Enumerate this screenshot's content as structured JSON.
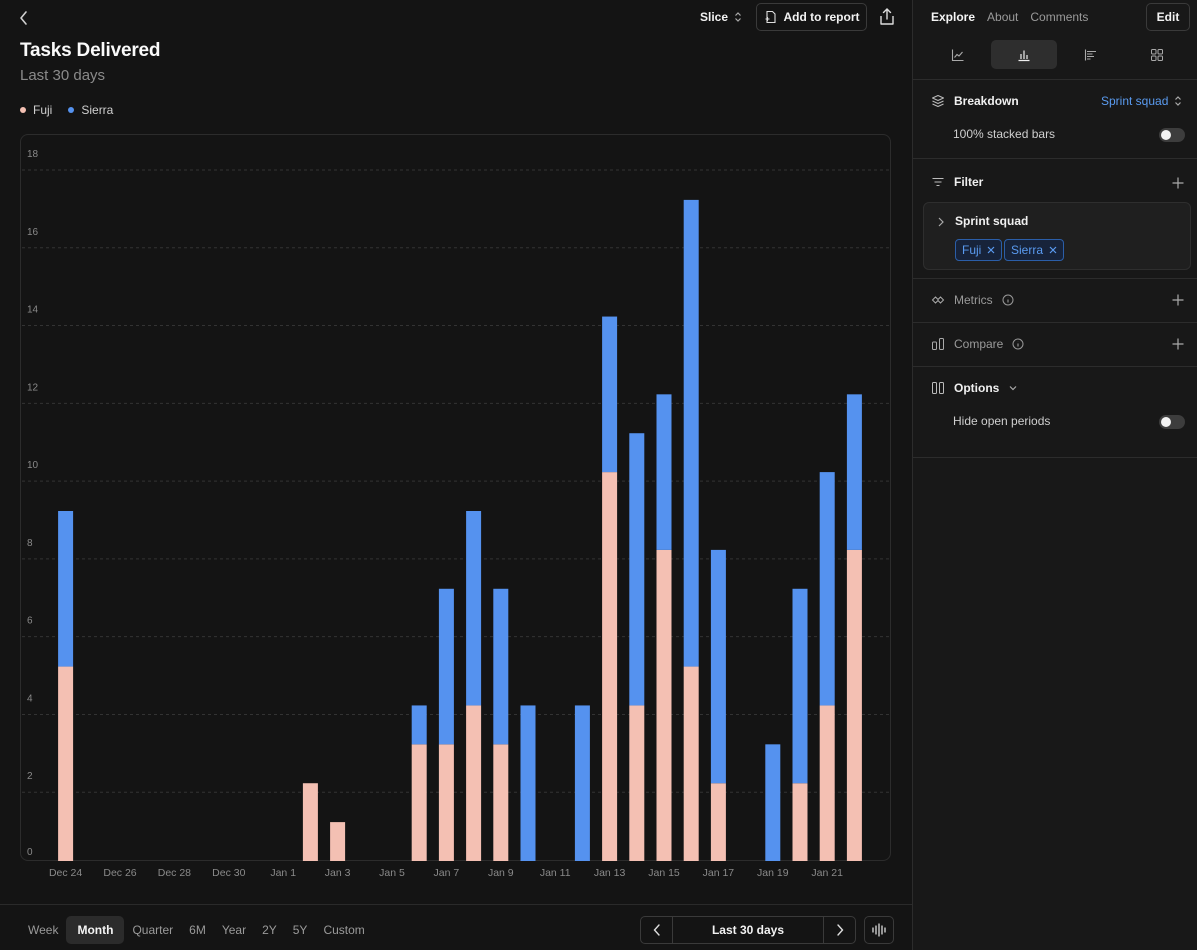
{
  "header": {
    "slice_label": "Slice",
    "add_to_report_label": "Add to report",
    "title": "Tasks Delivered",
    "subtitle": "Last 30 days"
  },
  "legend": [
    {
      "name": "Fuji",
      "color": "#f4c0b3"
    },
    {
      "name": "Sierra",
      "color": "#5592ef"
    }
  ],
  "chart_data": {
    "type": "bar",
    "stacked": true,
    "title": "Tasks Delivered",
    "subtitle": "Last 30 days",
    "ylim": [
      0,
      18
    ],
    "yticks": [
      0,
      2,
      4,
      6,
      8,
      10,
      12,
      14,
      16,
      18
    ],
    "xtick_labels": [
      "Dec 24",
      "Dec 26",
      "Dec 28",
      "Dec 30",
      "Jan 1",
      "Jan 3",
      "Jan 5",
      "Jan 7",
      "Jan 9",
      "Jan 11",
      "Jan 13",
      "Jan 15",
      "Jan 17",
      "Jan 19",
      "Jan 21"
    ],
    "categories": [
      "Dec 24",
      "Dec 25",
      "Dec 26",
      "Dec 27",
      "Dec 28",
      "Dec 29",
      "Dec 30",
      "Dec 31",
      "Jan 1",
      "Jan 2",
      "Jan 3",
      "Jan 4",
      "Jan 5",
      "Jan 6",
      "Jan 7",
      "Jan 8",
      "Jan 9",
      "Jan 10",
      "Jan 11",
      "Jan 12",
      "Jan 13",
      "Jan 14",
      "Jan 15",
      "Jan 16",
      "Jan 17",
      "Jan 18",
      "Jan 19",
      "Jan 20",
      "Jan 21",
      "Jan 22"
    ],
    "series": [
      {
        "name": "Fuji",
        "color": "#f4c0b3",
        "values": [
          5,
          0,
          0,
          0,
          0,
          0,
          0,
          0,
          0,
          2,
          1,
          0,
          0,
          3,
          3,
          4,
          3,
          0,
          0,
          0,
          10,
          4,
          8,
          5,
          2,
          0,
          0,
          2,
          4,
          8
        ]
      },
      {
        "name": "Sierra",
        "color": "#5592ef",
        "values": [
          4,
          0,
          0,
          0,
          0,
          0,
          0,
          0,
          0,
          0,
          0,
          0,
          0,
          1,
          4,
          5,
          4,
          4,
          0,
          4,
          4,
          7,
          4,
          12,
          6,
          0,
          3,
          5,
          6,
          4
        ]
      }
    ],
    "grid": true,
    "legend_position": "top-left"
  },
  "bottom": {
    "periods": [
      "Week",
      "Month",
      "Quarter",
      "6M",
      "Year",
      "2Y",
      "5Y",
      "Custom"
    ],
    "active_period": "Month",
    "range_label": "Last 30 days"
  },
  "panel": {
    "tabs": [
      "Explore",
      "About",
      "Comments"
    ],
    "active_tab": "Explore",
    "edit_label": "Edit",
    "viz_types": [
      "line-chart-icon",
      "bar-chart-icon",
      "horizontal-bar-icon",
      "grid-icon"
    ],
    "breakdown_label": "Breakdown",
    "breakdown_value": "Sprint squad",
    "stacked_label": "100% stacked bars",
    "filter_label": "Filter",
    "filter_group": "Sprint squad",
    "filter_chips": [
      "Fuji",
      "Sierra"
    ],
    "metrics_label": "Metrics",
    "compare_label": "Compare",
    "options_label": "Options",
    "hide_open_label": "Hide open periods"
  }
}
